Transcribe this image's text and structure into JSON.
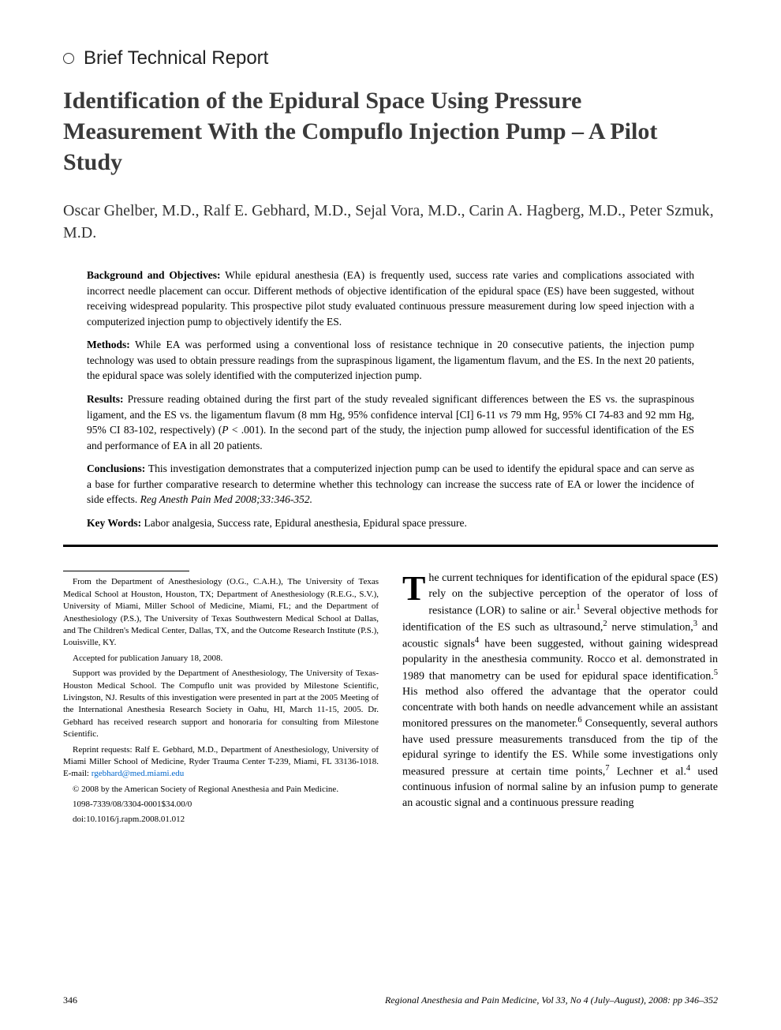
{
  "section": {
    "label": "Brief Technical Report"
  },
  "title": "Identification of the Epidural Space Using Pressure Measurement With the Compuflo Injection Pump – A Pilot Study",
  "authors": "Oscar Ghelber, M.D., Ralf E. Gebhard, M.D., Sejal Vora, M.D., Carin A. Hagberg, M.D., Peter Szmuk, M.D.",
  "abstract": {
    "background": {
      "label": "Background and Objectives:",
      "text": "While epidural anesthesia (EA) is frequently used, success rate varies and complications associated with incorrect needle placement can occur. Different methods of objective identification of the epidural space (ES) have been suggested, without receiving widespread popularity. This prospective pilot study evaluated continuous pressure measurement during low speed injection with a computerized injection pump to objectively identify the ES."
    },
    "methods": {
      "label": "Methods:",
      "text": "While EA was performed using a conventional loss of resistance technique in 20 consecutive patients, the injection pump technology was used to obtain pressure readings from the supraspinous ligament, the ligamentum flavum, and the ES. In the next 20 patients, the epidural space was solely identified with the computerized injection pump."
    },
    "results": {
      "label": "Results:",
      "text_before_italic": "Pressure reading obtained during the first part of the study revealed significant differences between the ES vs. the supraspinous ligament, and the ES vs. the ligamentum flavum (8 mm Hg, 95% confidence interval [CI] 6-11 ",
      "italic_vs": "vs",
      "text_after_italic": " 79 mm Hg, 95% CI 74-83 and 92 mm Hg, 95% CI 83-102, respectively) (",
      "italic_p": "P",
      "text_after_p": " < .001). In the second part of the study, the injection pump allowed for successful identification of the ES and performance of EA in all 20 patients."
    },
    "conclusions": {
      "label": "Conclusions:",
      "text": "This investigation demonstrates that a computerized injection pump can be used to identify the epidural space and can serve as a base for further comparative research to determine whether this technology can increase the success rate of EA or lower the incidence of side effects. ",
      "citation": "Reg Anesth Pain Med 2008;33:346-352."
    },
    "keywords": {
      "label": "Key Words:",
      "text": "Labor analgesia, Success rate, Epidural anesthesia, Epidural space pressure."
    }
  },
  "footnotes": {
    "affiliation": "From the Department of Anesthesiology (O.G., C.A.H.), The University of Texas Medical School at Houston, Houston, TX; Department of Anesthesiology (R.E.G., S.V.), University of Miami, Miller School of Medicine, Miami, FL; and the Department of Anesthesiology (P.S.), The University of Texas Southwestern Medical School at Dallas, and The Children's Medical Center, Dallas, TX, and the Outcome Research Institute (P.S.), Louisville, KY.",
    "accepted": "Accepted for publication January 18, 2008.",
    "support": "Support was provided by the Department of Anesthesiology, The University of Texas-Houston Medical School. The Compuflo unit was provided by Milestone Scientific, Livingston, NJ. Results of this investigation were presented in part at the 2005 Meeting of the International Anesthesia Research Society in Oahu, HI, March 11-15, 2005. Dr. Gebhard has received research support and honoraria for consulting from Milestone Scientific.",
    "reprint": "Reprint requests: Ralf E. Gebhard, M.D., Department of Anesthesiology, University of Miami Miller School of Medicine, Ryder Trauma Center T-239, Miami, FL 33136-1018. E-mail: ",
    "email": "rgebhard@med.miami.edu",
    "copyright": "© 2008 by the American Society of Regional Anesthesia and Pain Medicine.",
    "issn": "1098-7339/08/3304-0001$34.00/0",
    "doi": "doi:10.1016/j.rapm.2008.01.012"
  },
  "body": {
    "dropcap": "T",
    "p1_part1": "he current techniques for identification of the epidural space (ES) rely on the subjective perception of the operator of loss of resistance (LOR) to saline or air.",
    "p1_ref1": "1",
    "p1_part2": " Several objective methods for identification of the ES such as ultrasound,",
    "p1_ref2": "2",
    "p1_part3": " nerve stimulation,",
    "p1_ref3": "3",
    "p1_part4": " and acoustic signals",
    "p1_ref4": "4",
    "p1_part5": " have been suggested, without gaining widespread popularity in the anesthesia community. Rocco et al. demonstrated in 1989 that manometry can be used for epidural space identification.",
    "p1_ref5": "5",
    "p1_part6": " His method also offered the advantage that the operator could concentrate with both hands on needle advancement while an assistant monitored pressures on the manometer.",
    "p1_ref6": "6",
    "p1_part7": " Consequently, several authors have used pressure measurements transduced from the tip of the epidural syringe to identify the ES. While some investigations only measured pressure at certain time points,",
    "p1_ref7": "7",
    "p1_part8": " Lechner et al.",
    "p1_ref8": "4",
    "p1_part9": " used continuous infusion of normal saline by an infusion pump to generate an acoustic signal and a continuous pressure reading"
  },
  "footer": {
    "page": "346",
    "journal": "Regional Anesthesia and Pain Medicine, Vol 33, No 4 (July–August), 2008: pp 346–352"
  },
  "colors": {
    "text": "#000000",
    "title": "#3a3a3a",
    "link": "#0066cc",
    "background": "#ffffff"
  },
  "typography": {
    "title_fontsize": 30,
    "author_fontsize": 20,
    "section_label_fontsize": 24,
    "abstract_fontsize": 13.5,
    "body_fontsize": 14,
    "footnote_fontsize": 11,
    "footer_fontsize": 12
  }
}
